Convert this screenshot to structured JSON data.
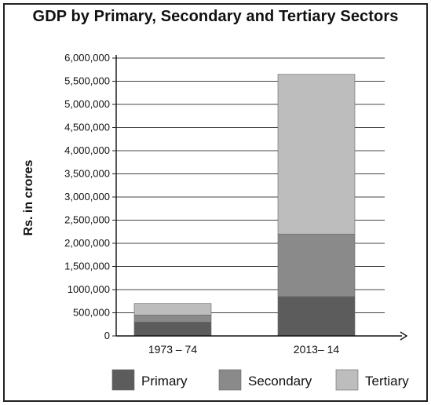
{
  "chart_data": {
    "type": "bar",
    "stacked": true,
    "title": "GDP by Primary, Secondary and Tertiary Sectors",
    "xlabel": "",
    "ylabel": "Rs. in crores",
    "ylim": [
      0,
      6000000
    ],
    "yticks": [
      0,
      500000,
      1000000,
      1500000,
      2000000,
      2500000,
      3000000,
      3500000,
      4000000,
      4500000,
      5000000,
      5500000,
      6000000
    ],
    "ytick_labels": [
      "0",
      "500,000",
      "1000,000",
      "1,500,000",
      "2,000,000",
      "2,500,000",
      "3,000,000",
      "3,500,000",
      "4,000,000",
      "4,500,000",
      "5,000,000",
      "5,500,000",
      "6,000,000"
    ],
    "categories": [
      "1973 – 74",
      "2013– 14"
    ],
    "series": [
      {
        "name": "Primary",
        "values": [
          300000,
          850000
        ],
        "color": "#5c5c5c"
      },
      {
        "name": "Secondary",
        "values": [
          150000,
          1350000
        ],
        "color": "#8a8a8a"
      },
      {
        "name": "Tertiary",
        "values": [
          250000,
          3450000
        ],
        "color": "#bdbdbd"
      }
    ],
    "grid": true,
    "legend_position": "bottom"
  }
}
